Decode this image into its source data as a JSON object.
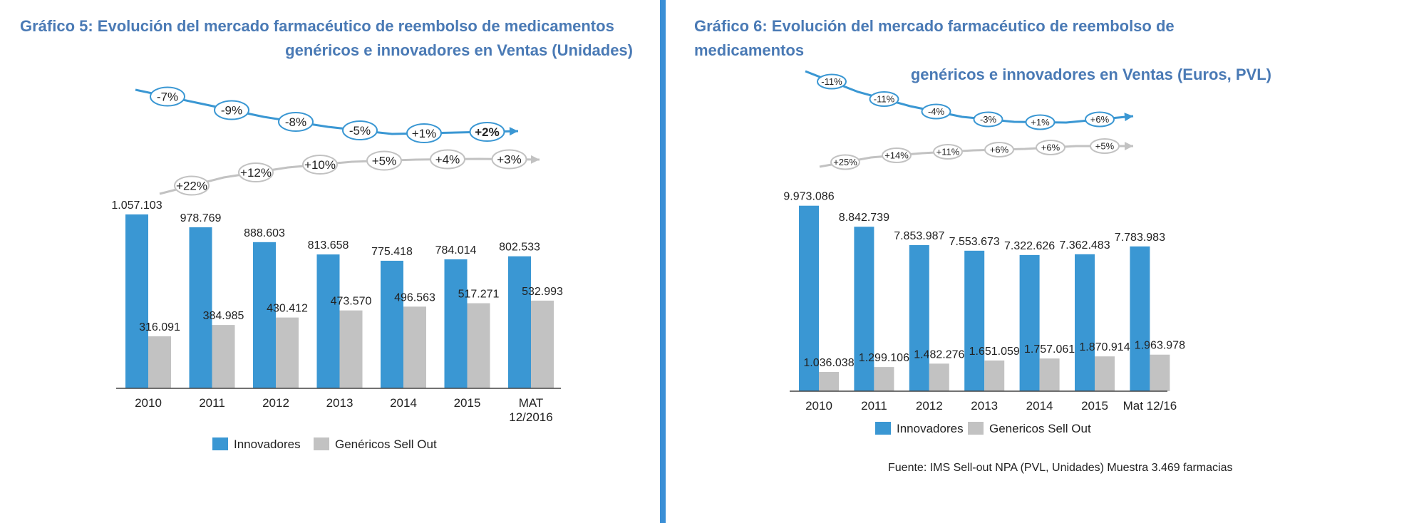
{
  "colors": {
    "innovadores": "#3a97d3",
    "genericos": "#c2c2c2",
    "title": "#4a7ab5",
    "divider": "#3a8fd6"
  },
  "chart_data": [
    {
      "type": "bar",
      "title_line1": "Gráfico 5: Evolución del mercado farmacéutico de reembolso de medicamentos",
      "title_line2": "genéricos e innovadores en Ventas (Unidades)",
      "categories": [
        "2010",
        "2011",
        "2012",
        "2013",
        "2014",
        "2015",
        "MAT 12/2016"
      ],
      "series": [
        {
          "name": "Innovadores",
          "values": [
            1057103,
            978769,
            888603,
            813658,
            775418,
            784014,
            802533
          ],
          "labels": [
            "1.057.103",
            "978.769",
            "888.603",
            "813.658",
            "775.418",
            "784.014",
            "802.533"
          ]
        },
        {
          "name": "Genéricos Sell Out",
          "values": [
            316091,
            384985,
            430412,
            473570,
            496563,
            517271,
            532993
          ],
          "labels": [
            "316.091",
            "384.985",
            "430.412",
            "473.570",
            "496.563",
            "517.271",
            "532.993"
          ]
        }
      ],
      "growth_innovadores": [
        "-7%",
        "-9%",
        "-8%",
        "-5%",
        "+1%",
        "+2%"
      ],
      "growth_genericos": [
        "+22%",
        "+12%",
        "+10%",
        "+5%",
        "+4%",
        "+3%"
      ],
      "ylim": [
        0,
        1100000
      ]
    },
    {
      "type": "bar",
      "title_line1": "Gráfico 6: Evolución del mercado farmacéutico de reembolso de medicamentos",
      "title_line2": "genéricos e innovadores en Ventas (Euros, PVL)",
      "categories": [
        "2010",
        "2011",
        "2012",
        "2013",
        "2014",
        "2015",
        "Mat 12/16"
      ],
      "series": [
        {
          "name": "Innovadores",
          "values": [
            9973086,
            8842739,
            7853987,
            7553673,
            7322626,
            7362483,
            7783983
          ],
          "labels": [
            "9.973.086",
            "8.842.739",
            "7.853.987",
            "7.553.673",
            "7.322.626",
            "7.362.483",
            "7.783.983"
          ]
        },
        {
          "name": "Genericos Sell Out",
          "values": [
            1036038,
            1299106,
            1482276,
            1651059,
            1757061,
            1870914,
            1963978
          ],
          "labels": [
            "1.036.038",
            "1.299.106",
            "1.482.276",
            "1.651.059",
            "1.757.061",
            "1.870.914",
            "1.963.978"
          ]
        }
      ],
      "growth_innovadores": [
        "-11%",
        "-11%",
        "-4%",
        "-3%",
        "+1%",
        "+6%"
      ],
      "growth_genericos": [
        "+25%",
        "+14%",
        "+11%",
        "+6%",
        "+6%",
        "+5%"
      ],
      "ylim": [
        0,
        10000000
      ]
    }
  ],
  "source": "Fuente: IMS Sell-out NPA (PVL, Unidades) Muestra 3.469 farmacias"
}
